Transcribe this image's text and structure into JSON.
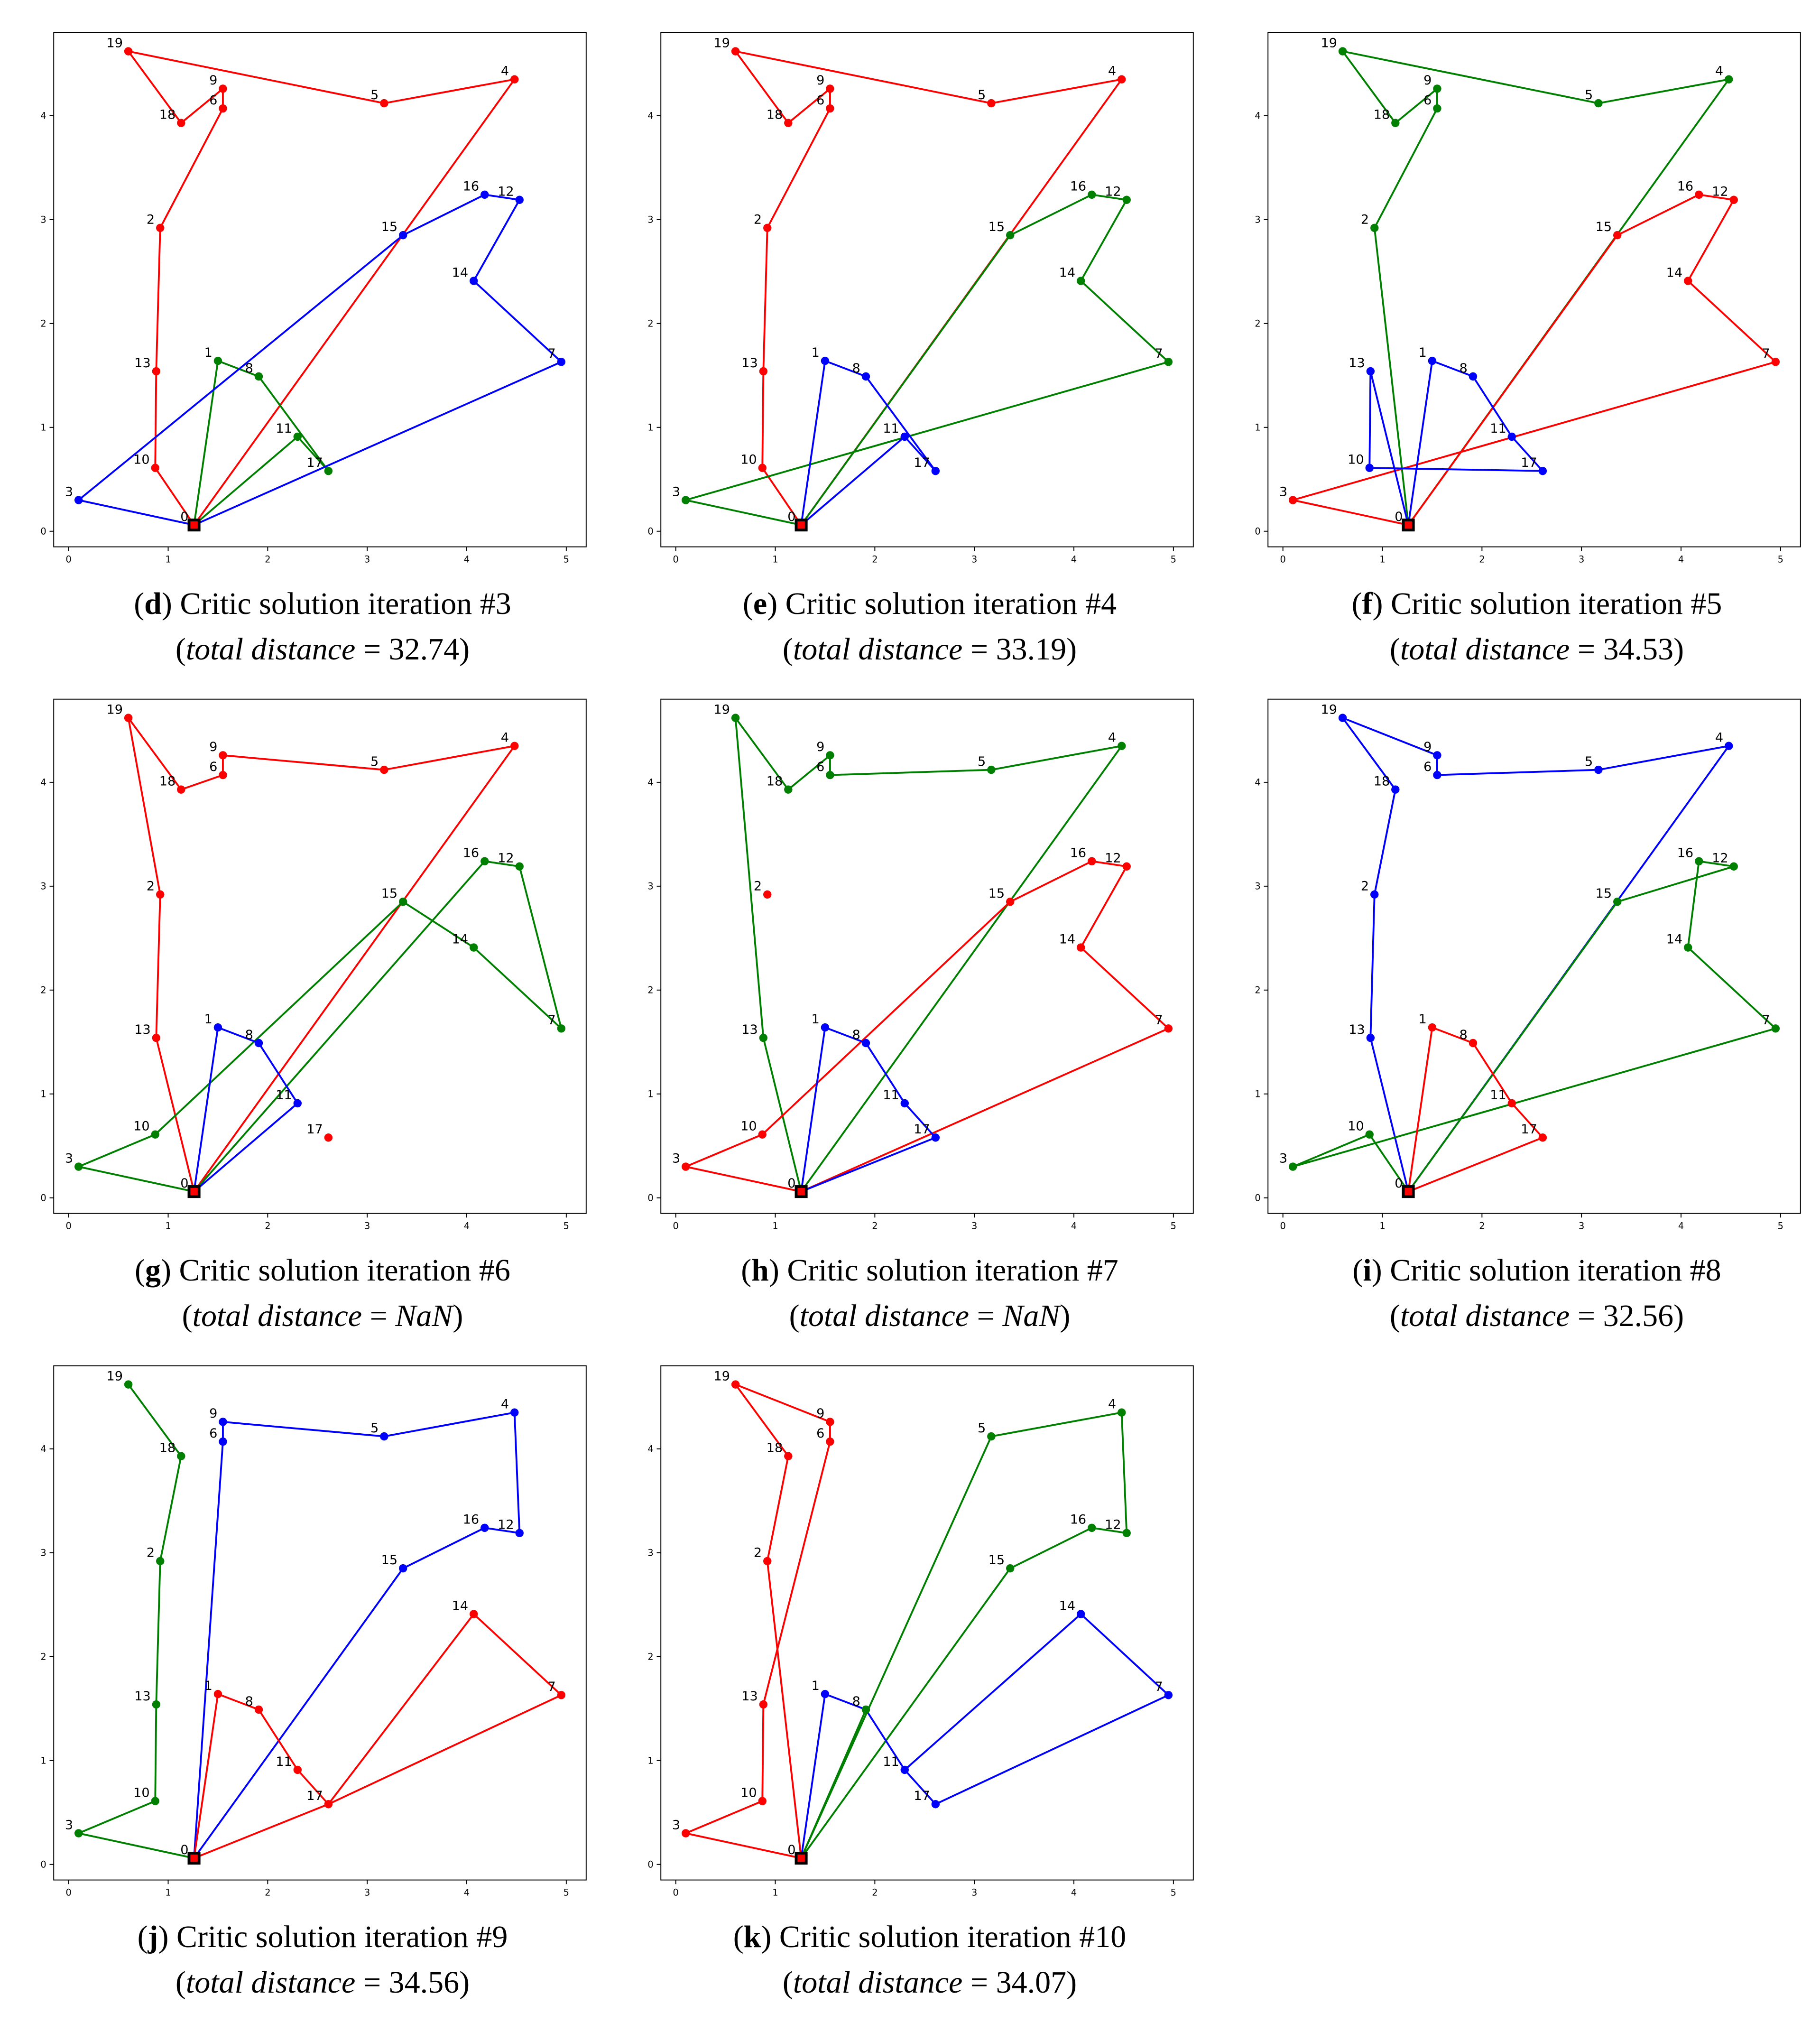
{
  "colors": {
    "red": "#ff0000",
    "green": "#008000",
    "blue": "#0000ff",
    "depot": "#000000"
  },
  "nodes": {
    "0": [
      1.26,
      0.06
    ],
    "1": [
      1.5,
      1.64
    ],
    "2": [
      0.92,
      2.92
    ],
    "3": [
      0.1,
      0.3
    ],
    "4": [
      4.48,
      4.35
    ],
    "5": [
      3.17,
      4.12
    ],
    "6": [
      1.55,
      4.07
    ],
    "7": [
      4.95,
      1.63
    ],
    "8": [
      1.91,
      1.49
    ],
    "9": [
      1.55,
      4.26
    ],
    "10": [
      0.87,
      0.61
    ],
    "11": [
      2.3,
      0.91
    ],
    "12": [
      4.53,
      3.19
    ],
    "13": [
      0.88,
      1.54
    ],
    "14": [
      4.07,
      2.41
    ],
    "15": [
      3.36,
      2.85
    ],
    "16": [
      4.18,
      3.24
    ],
    "17": [
      2.61,
      0.58
    ],
    "18": [
      1.13,
      3.93
    ],
    "19": [
      0.6,
      4.62
    ]
  },
  "chart_data": [
    {
      "type": "line",
      "letter": "d",
      "title": "Critic solution iteration #3",
      "distance_label": "total distance",
      "distance": "32.74",
      "xlim": [
        -0.15,
        5.2
      ],
      "ylim": [
        -0.15,
        4.8
      ],
      "xticks": [
        "0",
        "1",
        "2",
        "3",
        "4",
        "5"
      ],
      "yticks": [
        "0",
        "1",
        "2",
        "3",
        "4"
      ],
      "routes": [
        {
          "color": "red",
          "nodes": [
            0,
            10,
            13,
            2,
            6,
            9,
            18,
            19,
            5,
            4,
            0
          ]
        },
        {
          "color": "green",
          "nodes": [
            0,
            1,
            8,
            17,
            11,
            0
          ]
        },
        {
          "color": "blue",
          "nodes": [
            0,
            3,
            15,
            16,
            12,
            14,
            7,
            0
          ]
        }
      ]
    },
    {
      "type": "line",
      "letter": "e",
      "title": "Critic solution iteration #4",
      "distance_label": "total distance",
      "distance": "33.19",
      "xlim": [
        -0.15,
        5.2
      ],
      "ylim": [
        -0.15,
        4.8
      ],
      "xticks": [
        "0",
        "1",
        "2",
        "3",
        "4",
        "5"
      ],
      "yticks": [
        "0",
        "1",
        "2",
        "3",
        "4"
      ],
      "routes": [
        {
          "color": "red",
          "nodes": [
            0,
            10,
            13,
            2,
            6,
            9,
            18,
            19,
            5,
            4,
            0
          ]
        },
        {
          "color": "green",
          "nodes": [
            0,
            3,
            7,
            14,
            12,
            16,
            15,
            0
          ]
        },
        {
          "color": "blue",
          "nodes": [
            0,
            1,
            8,
            17,
            11,
            0
          ]
        }
      ]
    },
    {
      "type": "line",
      "letter": "f",
      "title": "Critic solution iteration #5",
      "distance_label": "total distance",
      "distance": "34.53",
      "xlim": [
        -0.15,
        5.2
      ],
      "ylim": [
        -0.15,
        4.8
      ],
      "xticks": [
        "0",
        "1",
        "2",
        "3",
        "4",
        "5"
      ],
      "yticks": [
        "0",
        "1",
        "2",
        "3",
        "4"
      ],
      "routes": [
        {
          "color": "green",
          "nodes": [
            0,
            2,
            6,
            9,
            18,
            19,
            5,
            4,
            0
          ]
        },
        {
          "color": "red",
          "nodes": [
            0,
            15,
            16,
            12,
            14,
            7,
            3,
            0
          ]
        },
        {
          "color": "blue",
          "nodes": [
            0,
            13,
            10,
            17,
            11,
            8,
            1,
            0
          ]
        }
      ]
    },
    {
      "type": "line",
      "letter": "g",
      "title": "Critic solution iteration #6",
      "distance_label": "total distance",
      "distance": "NaN",
      "xlim": [
        -0.15,
        5.2
      ],
      "ylim": [
        -0.15,
        4.8
      ],
      "xticks": [
        "0",
        "1",
        "2",
        "3",
        "4",
        "5"
      ],
      "yticks": [
        "0",
        "1",
        "2",
        "3",
        "4"
      ],
      "routes": [
        {
          "color": "red",
          "nodes": [
            0,
            13,
            2,
            19,
            18,
            6,
            9,
            5,
            4,
            0
          ]
        },
        {
          "color": "green",
          "nodes": [
            0,
            3,
            10,
            15,
            14,
            7,
            12,
            16,
            0
          ]
        },
        {
          "color": "blue",
          "nodes": [
            0,
            1,
            8,
            11,
            0
          ]
        }
      ],
      "isolated": [
        {
          "node": 17,
          "color": "red"
        }
      ]
    },
    {
      "type": "line",
      "letter": "h",
      "title": "Critic solution iteration #7",
      "distance_label": "total distance",
      "distance": "NaN",
      "xlim": [
        -0.15,
        5.2
      ],
      "ylim": [
        -0.15,
        4.8
      ],
      "xticks": [
        "0",
        "1",
        "2",
        "3",
        "4",
        "5"
      ],
      "yticks": [
        "0",
        "1",
        "2",
        "3",
        "4"
      ],
      "routes": [
        {
          "color": "green",
          "nodes": [
            0,
            13,
            19,
            18,
            9,
            6,
            5,
            4,
            0
          ]
        },
        {
          "color": "red",
          "nodes": [
            0,
            3,
            10,
            15,
            16,
            12,
            14,
            7,
            0
          ]
        },
        {
          "color": "blue",
          "nodes": [
            0,
            1,
            8,
            11,
            17,
            0
          ]
        }
      ]
    },
    {
      "type": "line",
      "letter": "i",
      "title": "Critic solution iteration #8",
      "distance_label": "total distance",
      "distance": "32.56",
      "xlim": [
        -0.15,
        5.2
      ],
      "ylim": [
        -0.15,
        4.8
      ],
      "xticks": [
        "0",
        "1",
        "2",
        "3",
        "4",
        "5"
      ],
      "yticks": [
        "0",
        "1",
        "2",
        "3",
        "4"
      ],
      "routes": [
        {
          "color": "blue",
          "nodes": [
            0,
            13,
            2,
            18,
            19,
            9,
            6,
            5,
            4,
            0
          ]
        },
        {
          "color": "green",
          "nodes": [
            0,
            10,
            3,
            7,
            14,
            16,
            12,
            15,
            0
          ]
        },
        {
          "color": "red",
          "nodes": [
            0,
            1,
            8,
            11,
            17,
            0
          ]
        }
      ]
    },
    {
      "type": "line",
      "letter": "j",
      "title": "Critic solution iteration #9",
      "distance_label": "total distance",
      "distance": "34.56",
      "xlim": [
        -0.15,
        5.2
      ],
      "ylim": [
        -0.15,
        4.8
      ],
      "xticks": [
        "0",
        "1",
        "2",
        "3",
        "4",
        "5"
      ],
      "yticks": [
        "0",
        "1",
        "2",
        "3",
        "4"
      ],
      "routes": [
        {
          "color": "green",
          "nodes": [
            0,
            3,
            10,
            13,
            2,
            18,
            19
          ]
        },
        {
          "color": "blue",
          "nodes": [
            0,
            15,
            16,
            12,
            4,
            5,
            9,
            6,
            0
          ]
        },
        {
          "color": "red",
          "nodes": [
            0,
            1,
            8,
            11,
            17,
            7,
            14,
            17,
            0
          ]
        }
      ]
    },
    {
      "type": "line",
      "letter": "k",
      "title": "Critic solution iteration #10",
      "distance_label": "total distance",
      "distance": "34.07",
      "xlim": [
        -0.15,
        5.2
      ],
      "ylim": [
        -0.15,
        4.8
      ],
      "xticks": [
        "0",
        "1",
        "2",
        "3",
        "4",
        "5"
      ],
      "yticks": [
        "0",
        "1",
        "2",
        "3",
        "4"
      ],
      "routes": [
        {
          "color": "red",
          "nodes": [
            0,
            3,
            10,
            13,
            6,
            9,
            19,
            18,
            2,
            0
          ]
        },
        {
          "color": "green",
          "nodes": [
            0,
            5,
            4,
            12,
            16,
            15,
            0,
            8
          ]
        },
        {
          "color": "blue",
          "nodes": [
            0,
            1,
            8,
            11,
            14,
            7,
            17,
            11
          ]
        }
      ]
    }
  ]
}
